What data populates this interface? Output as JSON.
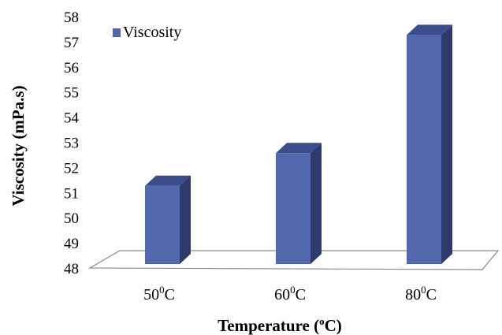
{
  "chart_data": {
    "type": "bar",
    "categories": [
      "50",
      "60",
      "80"
    ],
    "category_unit": "C",
    "category_superscript": "0",
    "series": [
      {
        "name": "Viscosity",
        "values": [
          51.3,
          52.6,
          57.3
        ]
      }
    ],
    "ylabel": "Viscosity (mPa.s)",
    "xlabel_main": "Temperature (",
    "xlabel_sup": "o",
    "xlabel_end": "C)",
    "ylim": [
      48,
      58
    ],
    "yticks": [
      48,
      49,
      50,
      51,
      52,
      53,
      54,
      55,
      56,
      57,
      58
    ],
    "grid": false,
    "legend_position": "top-left",
    "colors": {
      "front": "#5268ae",
      "top": "#3c4d8c",
      "side": "#2e3a6c"
    }
  }
}
